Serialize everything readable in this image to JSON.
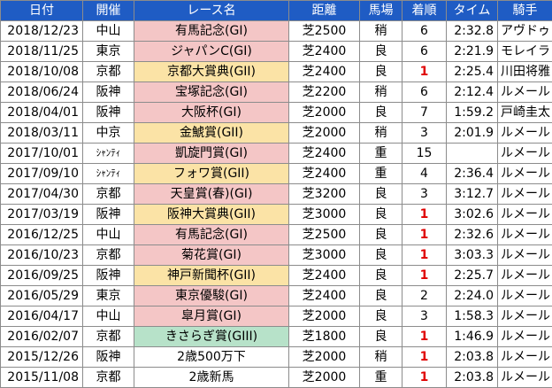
{
  "colors": {
    "header_bg": "#1f5cc4",
    "header_text": "#ffffff",
    "grade_G1": "#f4c6c6",
    "grade_G2": "#fbe3a6",
    "grade_G3": "#b7e2c9",
    "winner_rank": "#e00000"
  },
  "headers": [
    "日付",
    "開催",
    "レース名",
    "距離",
    "馬場",
    "着順",
    "タイム",
    "騎手"
  ],
  "rows": [
    {
      "date": "2018/12/23",
      "venue": "中山",
      "race": "有馬記念(GI)",
      "grade": "G1",
      "distance": "芝2500",
      "track": "稍",
      "rank": "6",
      "time": "2:32.8",
      "jockey": "アヴドゥ"
    },
    {
      "date": "2018/11/25",
      "venue": "東京",
      "race": "ジャパンC(GI)",
      "grade": "G1",
      "distance": "芝2400",
      "track": "良",
      "rank": "6",
      "time": "2:21.9",
      "jockey": "モレイラ"
    },
    {
      "date": "2018/10/08",
      "venue": "京都",
      "race": "京都大賞典(GII)",
      "grade": "G2",
      "distance": "芝2400",
      "track": "良",
      "rank": "1",
      "time": "2:25.4",
      "jockey": "川田将雅"
    },
    {
      "date": "2018/06/24",
      "venue": "阪神",
      "race": "宝塚記念(GI)",
      "grade": "G1",
      "distance": "芝2200",
      "track": "稍",
      "rank": "6",
      "time": "2:12.4",
      "jockey": "ルメール"
    },
    {
      "date": "2018/04/01",
      "venue": "阪神",
      "race": "大阪杯(GI)",
      "grade": "G1",
      "distance": "芝2000",
      "track": "良",
      "rank": "7",
      "time": "1:59.2",
      "jockey": "戸崎圭太"
    },
    {
      "date": "2018/03/11",
      "venue": "中京",
      "race": "金鯱賞(GII)",
      "grade": "G2",
      "distance": "芝2000",
      "track": "稍",
      "rank": "3",
      "time": "2:01.9",
      "jockey": "ルメール"
    },
    {
      "date": "2017/10/01",
      "venue": "ｼｬﾝﾃｨ",
      "race": "凱旋門賞(GI)",
      "grade": "G1",
      "distance": "芝2400",
      "track": "重",
      "rank": "15",
      "time": "",
      "jockey": "ルメール"
    },
    {
      "date": "2017/09/10",
      "venue": "ｼｬﾝﾃｨ",
      "race": "フォワ賞(GII)",
      "grade": "G2",
      "distance": "芝2400",
      "track": "重",
      "rank": "4",
      "time": "2:36.4",
      "jockey": "ルメール"
    },
    {
      "date": "2017/04/30",
      "venue": "京都",
      "race": "天皇賞(春)(GI)",
      "grade": "G1",
      "distance": "芝3200",
      "track": "良",
      "rank": "3",
      "time": "3:12.7",
      "jockey": "ルメール"
    },
    {
      "date": "2017/03/19",
      "venue": "阪神",
      "race": "阪神大賞典(GII)",
      "grade": "G2",
      "distance": "芝3000",
      "track": "良",
      "rank": "1",
      "time": "3:02.6",
      "jockey": "ルメール"
    },
    {
      "date": "2016/12/25",
      "venue": "中山",
      "race": "有馬記念(GI)",
      "grade": "G1",
      "distance": "芝2500",
      "track": "良",
      "rank": "1",
      "time": "2:32.6",
      "jockey": "ルメール"
    },
    {
      "date": "2016/10/23",
      "venue": "京都",
      "race": "菊花賞(GI)",
      "grade": "G1",
      "distance": "芝3000",
      "track": "良",
      "rank": "1",
      "time": "3:03.3",
      "jockey": "ルメール"
    },
    {
      "date": "2016/09/25",
      "venue": "阪神",
      "race": "神戸新聞杯(GII)",
      "grade": "G2",
      "distance": "芝2400",
      "track": "良",
      "rank": "1",
      "time": "2:25.7",
      "jockey": "ルメール"
    },
    {
      "date": "2016/05/29",
      "venue": "東京",
      "race": "東京優駿(GI)",
      "grade": "G1",
      "distance": "芝2400",
      "track": "良",
      "rank": "2",
      "time": "2:24.0",
      "jockey": "ルメール"
    },
    {
      "date": "2016/04/17",
      "venue": "中山",
      "race": "皐月賞(GI)",
      "grade": "G1",
      "distance": "芝2000",
      "track": "良",
      "rank": "3",
      "time": "1:58.3",
      "jockey": "ルメール"
    },
    {
      "date": "2016/02/07",
      "venue": "京都",
      "race": "きさらぎ賞(GIII)",
      "grade": "G3",
      "distance": "芝1800",
      "track": "良",
      "rank": "1",
      "time": "1:46.9",
      "jockey": "ルメール"
    },
    {
      "date": "2015/12/26",
      "venue": "阪神",
      "race": "2歳500万下",
      "grade": "",
      "distance": "芝2000",
      "track": "稍",
      "rank": "1",
      "time": "2:03.8",
      "jockey": "ルメール"
    },
    {
      "date": "2015/11/08",
      "venue": "京都",
      "race": "2歳新馬",
      "grade": "",
      "distance": "芝2000",
      "track": "重",
      "rank": "1",
      "time": "2:03.8",
      "jockey": "ルメール"
    }
  ]
}
